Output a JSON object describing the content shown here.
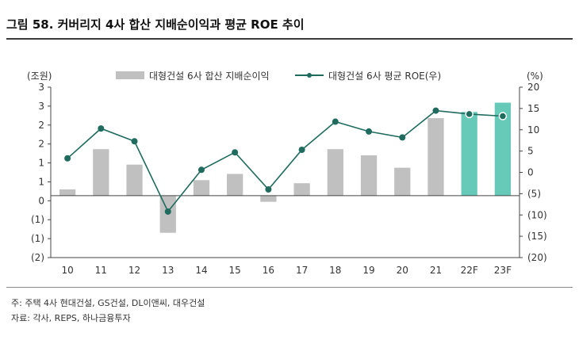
{
  "title": "그림 58. 커버리지 4사 합산 지배순이익과 평균 ROE 추이",
  "notes": {
    "note": "주: 주택 4사 현대건설, GS건설, DL이앤씨, 대우건설",
    "source": "자료: 각사, REPS, 하나금융투자"
  },
  "colors": {
    "bar_actual": "#c0c0c0",
    "bar_forecast": "#67c9b8",
    "line": "#1f6b5e",
    "marker_fill": "#1f6b5e",
    "forecast_marker_fill": "#1f6b5e"
  },
  "chart_data": {
    "type": "bar+line",
    "categories": [
      "10",
      "11",
      "12",
      "13",
      "14",
      "15",
      "16",
      "17",
      "18",
      "19",
      "20",
      "21",
      "22F",
      "23F"
    ],
    "series": [
      {
        "name": "대형건설 6사 합산 지배순이익",
        "type": "bar",
        "axis": "left",
        "values": [
          0.2,
          1.5,
          1.0,
          -1.2,
          0.5,
          0.7,
          -0.2,
          0.4,
          1.5,
          1.3,
          0.9,
          2.5,
          2.7,
          3.0
        ],
        "forecast_from_index": 12
      },
      {
        "name": "대형건설 6사 평균 ROE(우)",
        "type": "line",
        "axis": "right",
        "values": [
          3.3,
          10.3,
          7.3,
          -9.2,
          0.6,
          4.7,
          -4.0,
          5.3,
          11.9,
          9.6,
          8.2,
          14.5,
          13.7,
          13.2
        ]
      }
    ],
    "y_left": {
      "unit_label": "(조원)",
      "ticks": [
        "3",
        "3",
        "2",
        "2",
        "1",
        "1",
        "0",
        "(1)",
        "(1)",
        "(2)"
      ],
      "ylim": [
        -2,
        3.5
      ]
    },
    "y_right": {
      "unit_label": "(%)",
      "ticks": [
        "20",
        "15",
        "10",
        "5",
        "0",
        "(5)",
        "(10)",
        "(15)",
        "(20)"
      ],
      "ylim": [
        -20,
        20
      ]
    },
    "legend_position": "top",
    "grid": false
  }
}
